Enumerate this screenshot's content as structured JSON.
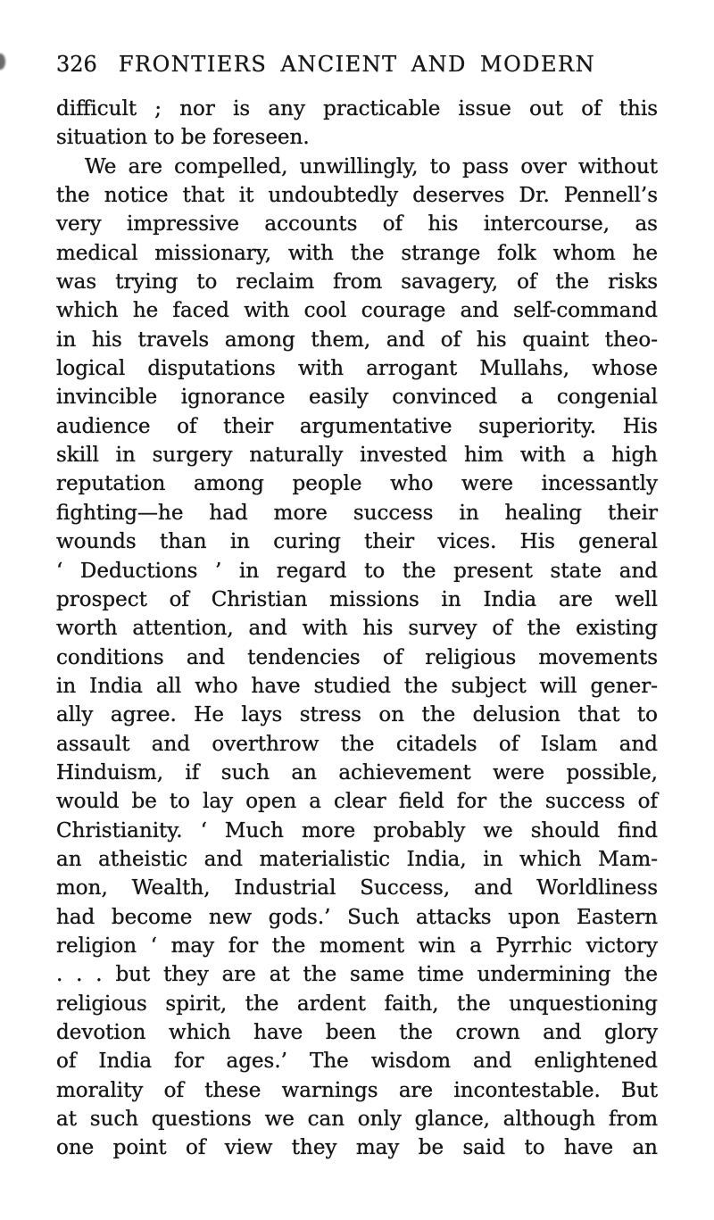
{
  "header": {
    "page_number": "326",
    "title": "FRONTIERS ANCIENT AND MODERN"
  },
  "body": {
    "paragraphs": [
      {
        "indent_first": false,
        "justify_last": false,
        "lines": [
          "difficult ; nor is any practicable issue out of this",
          "situation to be foreseen."
        ]
      },
      {
        "indent_first": true,
        "justify_last": true,
        "lines": [
          "We are compelled, unwillingly, to pass over without",
          "the notice that it undoubtedly deserves Dr. Pennell’s",
          "very impressive accounts of his intercourse, as",
          "medical missionary, with the strange folk whom he",
          "was trying to reclaim from savagery, of the risks",
          "which he faced with cool courage and self-command",
          "in his travels among them, and of his quaint theo-",
          "logical disputations with arrogant Mullahs, whose",
          "invincible ignorance easily convinced a congenial",
          "audience of their argumentative superiority. His",
          "skill in surgery naturally invested him with a high",
          "reputation among people who were incessantly",
          "fighting—he had more success in healing their",
          "wounds than in curing their vices. His general",
          "‘ Deductions ’ in regard to the present state and",
          "prospect of Christian missions in India are well",
          "worth attention, and with his survey of the existing",
          "conditions and tendencies of religious movements",
          "in India all who have studied the subject will gener-",
          "ally agree. He lays stress on the delusion that to",
          "assault and overthrow the citadels of Islam and",
          "Hinduism, if such an achievement were possible,",
          "would be to lay open a clear field for the success of",
          "Christianity. ‘ Much more probably we should find",
          "an atheistic and materialistic India, in which Mam-",
          "mon, Wealth, Industrial Success, and Worldliness",
          "had become new gods.’ Such attacks upon Eastern",
          "religion ‘ may for the moment win a Pyrrhic victory",
          ". . . but they are at the same time undermining the",
          "religious spirit, the ardent faith, the unquestioning",
          "devotion which have been the crown and glory",
          "of India for ages.’ The wisdom and enlightened",
          "morality of these warnings are incontestable. But",
          "at such questions we can only glance, although from",
          "one point of view they may be said to have an"
        ]
      }
    ]
  }
}
